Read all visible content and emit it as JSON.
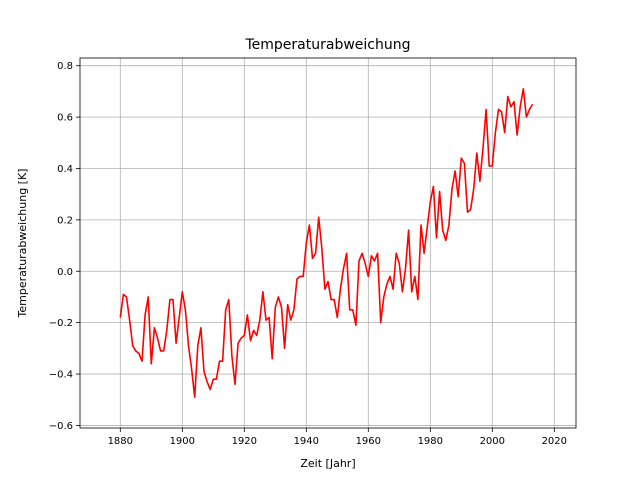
{
  "chart_data": {
    "type": "line",
    "title": "Temperaturabweichung",
    "xlabel": "Zeit [Jahr]",
    "ylabel": "Temperaturabweichung [K]",
    "xlim": [
      1867,
      2027
    ],
    "ylim": [
      -0.61,
      0.83
    ],
    "xticks": [
      1880,
      1900,
      1920,
      1940,
      1960,
      1980,
      2000,
      2020
    ],
    "yticks": [
      -0.6,
      -0.4,
      -0.2,
      0.0,
      0.2,
      0.4,
      0.6,
      0.8
    ],
    "grid": true,
    "series": [
      {
        "color": "#ff0000",
        "x": [
          1880,
          1881,
          1882,
          1883,
          1884,
          1885,
          1886,
          1887,
          1888,
          1889,
          1890,
          1891,
          1892,
          1893,
          1894,
          1895,
          1896,
          1897,
          1898,
          1899,
          1900,
          1901,
          1902,
          1903,
          1904,
          1905,
          1906,
          1907,
          1908,
          1909,
          1910,
          1911,
          1912,
          1913,
          1914,
          1915,
          1916,
          1917,
          1918,
          1919,
          1920,
          1921,
          1922,
          1923,
          1924,
          1925,
          1926,
          1927,
          1928,
          1929,
          1930,
          1931,
          1932,
          1933,
          1934,
          1935,
          1936,
          1937,
          1938,
          1939,
          1940,
          1941,
          1942,
          1943,
          1944,
          1945,
          1946,
          1947,
          1948,
          1949,
          1950,
          1951,
          1952,
          1953,
          1954,
          1955,
          1956,
          1957,
          1958,
          1959,
          1960,
          1961,
          1962,
          1963,
          1964,
          1965,
          1966,
          1967,
          1968,
          1969,
          1970,
          1971,
          1972,
          1973,
          1974,
          1975,
          1976,
          1977,
          1978,
          1979,
          1980,
          1981,
          1982,
          1983,
          1984,
          1985,
          1986,
          1987,
          1988,
          1989,
          1990,
          1991,
          1992,
          1993,
          1994,
          1995,
          1996,
          1997,
          1998,
          1999,
          2000,
          2001,
          2002,
          2003,
          2004,
          2005,
          2006,
          2007,
          2008,
          2009,
          2010,
          2011,
          2012,
          2013
        ],
        "y": [
          -0.18,
          -0.09,
          -0.1,
          -0.19,
          -0.29,
          -0.31,
          -0.32,
          -0.35,
          -0.17,
          -0.1,
          -0.36,
          -0.22,
          -0.26,
          -0.31,
          -0.31,
          -0.23,
          -0.11,
          -0.11,
          -0.28,
          -0.18,
          -0.08,
          -0.15,
          -0.29,
          -0.38,
          -0.49,
          -0.29,
          -0.22,
          -0.39,
          -0.43,
          -0.46,
          -0.42,
          -0.42,
          -0.35,
          -0.35,
          -0.15,
          -0.11,
          -0.33,
          -0.44,
          -0.28,
          -0.26,
          -0.25,
          -0.17,
          -0.27,
          -0.23,
          -0.25,
          -0.19,
          -0.08,
          -0.19,
          -0.18,
          -0.34,
          -0.14,
          -0.1,
          -0.14,
          -0.3,
          -0.13,
          -0.19,
          -0.15,
          -0.03,
          -0.02,
          -0.02,
          0.11,
          0.18,
          0.05,
          0.07,
          0.21,
          0.09,
          -0.07,
          -0.04,
          -0.11,
          -0.11,
          -0.18,
          -0.07,
          0.01,
          0.07,
          -0.15,
          -0.15,
          -0.21,
          0.04,
          0.07,
          0.03,
          -0.02,
          0.06,
          0.04,
          0.07,
          -0.2,
          -0.1,
          -0.05,
          -0.02,
          -0.07,
          0.07,
          0.03,
          -0.08,
          0.01,
          0.16,
          -0.08,
          -0.02,
          -0.11,
          0.18,
          0.07,
          0.17,
          0.27,
          0.33,
          0.13,
          0.31,
          0.16,
          0.12,
          0.18,
          0.32,
          0.39,
          0.29,
          0.44,
          0.42,
          0.23,
          0.24,
          0.32,
          0.46,
          0.35,
          0.48,
          0.63,
          0.41,
          0.41,
          0.54,
          0.63,
          0.62,
          0.54,
          0.68,
          0.64,
          0.66,
          0.53,
          0.64,
          0.71,
          0.6,
          0.63,
          0.65
        ]
      }
    ]
  }
}
